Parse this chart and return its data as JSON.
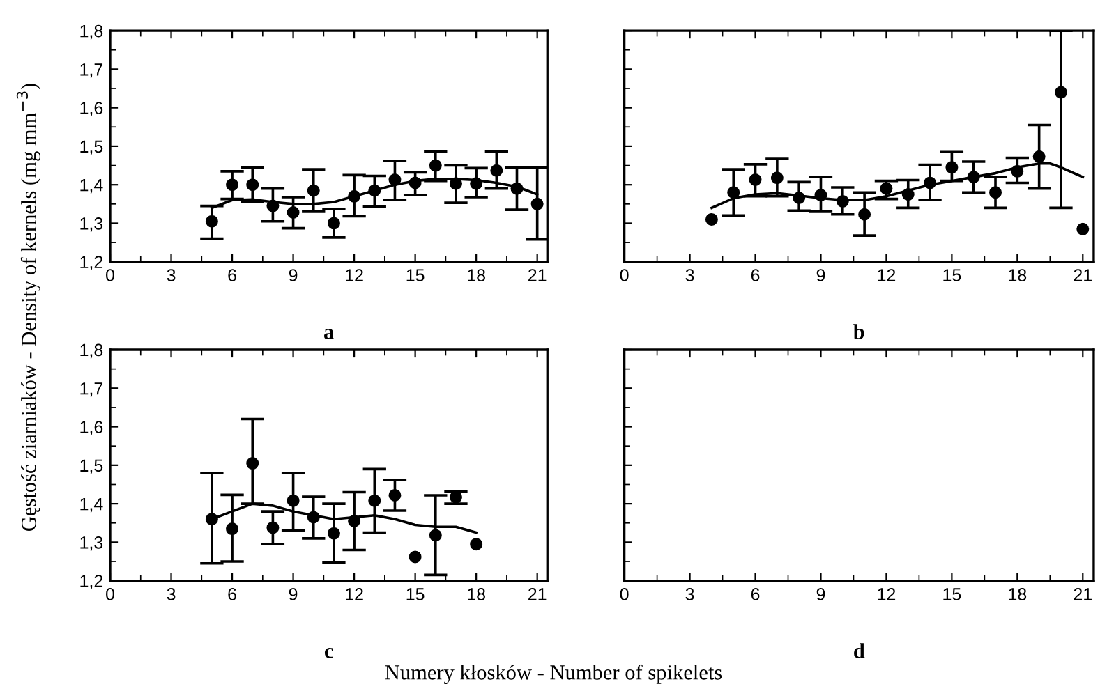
{
  "chart_data": [
    {
      "type": "scatter",
      "title": "a",
      "xlabel": "Numery kłosków - Number of spikelets",
      "ylabel": "Gęstość ziarniaków - Density of kernels (mg mm$^{−3}$)",
      "grid": false,
      "xlim": [
        0,
        21.5
      ],
      "xticks": [
        0,
        3,
        6,
        9,
        12,
        15,
        18,
        21
      ],
      "ylim": [
        1.2,
        1.8
      ],
      "yticks": [
        {
          "value": 1.2,
          "label": "1,2"
        },
        {
          "value": 1.3,
          "label": "1,3"
        },
        {
          "value": 1.4,
          "label": "1,4"
        },
        {
          "value": 1.5,
          "label": "1,5"
        },
        {
          "value": 1.6,
          "label": "1,6"
        },
        {
          "value": 1.7,
          "label": "1,7"
        },
        {
          "value": 1.8,
          "label": "1,8"
        }
      ],
      "series": [
        {
          "marker": "circle",
          "color": "#000000",
          "x": [
            5,
            6,
            7,
            8,
            9,
            10,
            11,
            12,
            13,
            14,
            15,
            16,
            17,
            18,
            19,
            20,
            21
          ],
          "values": [
            1.305,
            1.4,
            1.4,
            1.345,
            1.328,
            1.385,
            1.3,
            1.37,
            1.385,
            1.413,
            1.405,
            1.45,
            1.403,
            1.403,
            1.437,
            1.39,
            1.35
          ],
          "errors": [
            [
              1.26,
              1.345
            ],
            [
              1.363,
              1.435
            ],
            [
              1.355,
              1.445
            ],
            [
              1.305,
              1.39
            ],
            [
              1.287,
              1.368
            ],
            [
              1.33,
              1.44
            ],
            [
              1.263,
              1.337
            ],
            [
              1.318,
              1.425
            ],
            [
              1.343,
              1.423
            ],
            [
              1.36,
              1.462
            ],
            [
              1.373,
              1.432
            ],
            [
              1.41,
              1.487
            ],
            [
              1.353,
              1.45
            ],
            [
              1.368,
              1.443
            ],
            [
              1.39,
              1.487
            ],
            [
              1.335,
              1.445
            ],
            [
              1.258,
              1.445
            ]
          ]
        },
        {
          "type": "line",
          "color": "#000000",
          "x": [
            5,
            6,
            7,
            8,
            9,
            10,
            11,
            12,
            13,
            14,
            15,
            16,
            17,
            18,
            19,
            20,
            21
          ],
          "values": [
            1.34,
            1.36,
            1.362,
            1.355,
            1.35,
            1.35,
            1.355,
            1.37,
            1.385,
            1.4,
            1.41,
            1.415,
            1.415,
            1.412,
            1.405,
            1.395,
            1.375
          ]
        }
      ]
    },
    {
      "type": "scatter",
      "title": "b",
      "grid": false,
      "tick_labels": "x",
      "xlim": [
        0,
        21.5
      ],
      "xticks": [
        0,
        3,
        6,
        9,
        12,
        15,
        18,
        21
      ],
      "ylim": [
        1.2,
        1.8
      ],
      "yticks": [
        {
          "value": 1.2,
          "label": null
        },
        {
          "value": 1.3,
          "label": null
        },
        {
          "value": 1.4,
          "label": null
        },
        {
          "value": 1.5,
          "label": null
        },
        {
          "value": 1.6,
          "label": null
        },
        {
          "value": 1.7,
          "label": null
        },
        {
          "value": 1.8,
          "label": null
        }
      ],
      "series": [
        {
          "marker": "circle",
          "color": "#000000",
          "x": [
            4,
            5,
            6,
            7,
            8,
            9,
            10,
            11,
            12,
            13,
            14,
            15,
            16,
            17,
            18,
            19,
            20,
            21
          ],
          "values": [
            1.31,
            1.38,
            1.413,
            1.418,
            1.366,
            1.373,
            1.357,
            1.323,
            1.39,
            1.375,
            1.405,
            1.445,
            1.42,
            1.38,
            1.435,
            1.473,
            1.64,
            1.285
          ],
          "errors": [
            null,
            [
              1.32,
              1.44
            ],
            [
              1.37,
              1.453
            ],
            [
              1.37,
              1.467
            ],
            [
              1.333,
              1.407
            ],
            [
              1.33,
              1.42
            ],
            [
              1.323,
              1.393
            ],
            [
              1.268,
              1.38
            ],
            [
              1.363,
              1.41
            ],
            [
              1.34,
              1.412
            ],
            [
              1.36,
              1.452
            ],
            [
              1.41,
              1.485
            ],
            [
              1.38,
              1.46
            ],
            [
              1.34,
              1.42
            ],
            [
              1.405,
              1.47
            ],
            [
              1.39,
              1.555
            ],
            [
              1.34,
              1.8
            ],
            null
          ]
        },
        {
          "type": "line",
          "color": "#000000",
          "x": [
            4,
            5,
            6,
            7,
            8,
            9,
            10,
            11,
            12,
            13,
            14,
            15,
            16,
            17,
            18,
            19,
            19.5,
            20,
            21
          ],
          "values": [
            1.34,
            1.365,
            1.375,
            1.378,
            1.372,
            1.365,
            1.36,
            1.36,
            1.37,
            1.385,
            1.4,
            1.41,
            1.42,
            1.43,
            1.445,
            1.455,
            1.455,
            1.445,
            1.42
          ]
        }
      ]
    },
    {
      "type": "scatter",
      "title": "c",
      "grid": false,
      "xlim": [
        0,
        21.5
      ],
      "xticks": [
        0,
        3,
        6,
        9,
        12,
        15,
        18,
        21
      ],
      "ylim": [
        1.2,
        1.8
      ],
      "yticks": [
        {
          "value": 1.2,
          "label": "1,2"
        },
        {
          "value": 1.3,
          "label": "1,3"
        },
        {
          "value": 1.4,
          "label": "1,4"
        },
        {
          "value": 1.5,
          "label": "1,5"
        },
        {
          "value": 1.6,
          "label": "1,6"
        },
        {
          "value": 1.7,
          "label": "1,7"
        },
        {
          "value": 1.8,
          "label": "1,8"
        }
      ],
      "series": [
        {
          "marker": "circle",
          "color": "#000000",
          "x": [
            5,
            6,
            7,
            8,
            9,
            10,
            11,
            12,
            13,
            14,
            15,
            16,
            17,
            18
          ],
          "values": [
            1.36,
            1.335,
            1.505,
            1.338,
            1.408,
            1.365,
            1.323,
            1.355,
            1.408,
            1.422,
            1.262,
            1.318,
            1.417,
            1.295
          ],
          "errors": [
            [
              1.245,
              1.48
            ],
            [
              1.25,
              1.423
            ],
            [
              1.4,
              1.62
            ],
            [
              1.295,
              1.38
            ],
            [
              1.33,
              1.48
            ],
            [
              1.31,
              1.418
            ],
            [
              1.248,
              1.4
            ],
            [
              1.28,
              1.43
            ],
            [
              1.325,
              1.49
            ],
            [
              1.382,
              1.462
            ],
            null,
            [
              1.215,
              1.422
            ],
            [
              1.4,
              1.432
            ],
            null
          ]
        },
        {
          "type": "line",
          "color": "#000000",
          "x": [
            5,
            6,
            7,
            8,
            9,
            10,
            11,
            12,
            13,
            14,
            15,
            16,
            17,
            18
          ],
          "values": [
            1.36,
            1.38,
            1.4,
            1.395,
            1.38,
            1.37,
            1.36,
            1.365,
            1.37,
            1.36,
            1.345,
            1.34,
            1.34,
            1.325
          ]
        }
      ]
    },
    {
      "type": "scatter",
      "title": "d",
      "grid": false,
      "tick_labels": "x",
      "xlim": [
        0,
        21.5
      ],
      "xticks": [
        0,
        3,
        6,
        9,
        12,
        15,
        18,
        21
      ],
      "ylim": [
        1.2,
        1.8
      ],
      "yticks": [
        {
          "value": 1.2,
          "label": null
        },
        {
          "value": 1.3,
          "label": null
        },
        {
          "value": 1.4,
          "label": null
        },
        {
          "value": 1.5,
          "label": null
        },
        {
          "value": 1.6,
          "label": null
        },
        {
          "value": 1.7,
          "label": null
        },
        {
          "value": 1.8,
          "label": null
        }
      ]
    }
  ]
}
